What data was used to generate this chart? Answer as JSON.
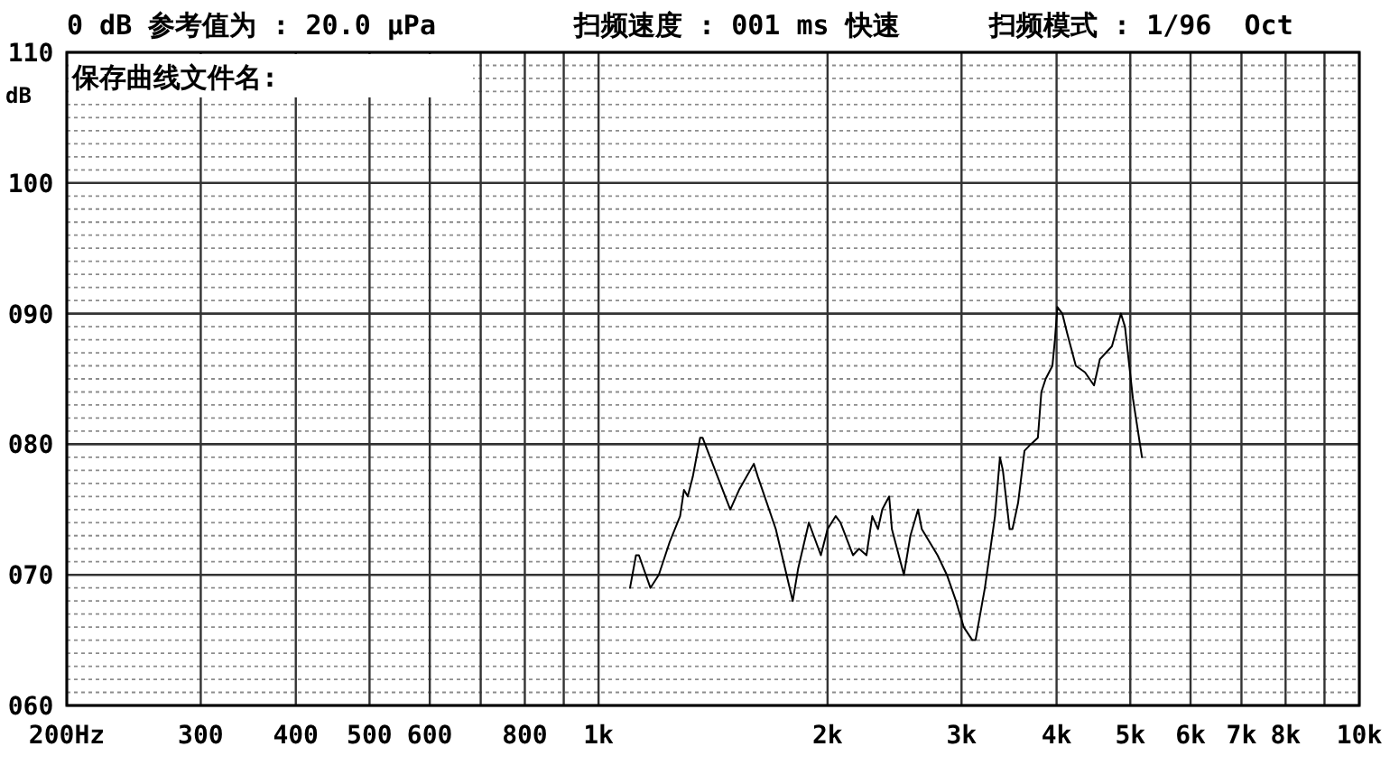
{
  "chart_data": {
    "type": "line",
    "title": "0 dB 参考值为 : 20.0 μPa",
    "annotations": [
      "扫频速度 : 001 ms 快速",
      "扫频模式 : 1/96  Oct",
      "保存曲线文件名:"
    ],
    "ylabel": "dB",
    "log": "x",
    "grid": true,
    "color": "#000000",
    "xlim": [
      200,
      10000
    ],
    "ylim": [
      60,
      110
    ],
    "xticks": [
      {
        "value": 200,
        "label": "200Hz"
      },
      300,
      400,
      500,
      600,
      {
        "value": 700,
        "label": null
      },
      800,
      {
        "value": 900,
        "label": null
      },
      {
        "value": 1000,
        "label": "1k"
      },
      {
        "value": 2000,
        "label": "2k"
      },
      {
        "value": 3000,
        "label": "3k"
      },
      {
        "value": 4000,
        "label": "4k"
      },
      {
        "value": 5000,
        "label": "5k"
      },
      {
        "value": 6000,
        "label": "6k"
      },
      {
        "value": 7000,
        "label": "7k"
      },
      {
        "value": 8000,
        "label": "8k"
      },
      {
        "value": 9000,
        "label": null
      },
      {
        "value": 10000,
        "label": "10k"
      }
    ],
    "yticks": [
      {
        "value": 60,
        "label": "060"
      },
      {
        "value": 61,
        "label": null
      },
      {
        "value": 62,
        "label": null
      },
      {
        "value": 63,
        "label": null
      },
      {
        "value": 64,
        "label": null
      },
      {
        "value": 65,
        "label": null
      },
      {
        "value": 66,
        "label": null
      },
      {
        "value": 67,
        "label": null
      },
      {
        "value": 68,
        "label": null
      },
      {
        "value": 69,
        "label": null
      },
      {
        "value": 70,
        "label": "070"
      },
      {
        "value": 71,
        "label": null
      },
      {
        "value": 72,
        "label": null
      },
      {
        "value": 73,
        "label": null
      },
      {
        "value": 74,
        "label": null
      },
      {
        "value": 75,
        "label": null
      },
      {
        "value": 76,
        "label": null
      },
      {
        "value": 77,
        "label": null
      },
      {
        "value": 78,
        "label": null
      },
      {
        "value": 79,
        "label": null
      },
      {
        "value": 80,
        "label": "080"
      },
      {
        "value": 81,
        "label": null
      },
      {
        "value": 82,
        "label": null
      },
      {
        "value": 83,
        "label": null
      },
      {
        "value": 84,
        "label": null
      },
      {
        "value": 85,
        "label": null
      },
      {
        "value": 86,
        "label": null
      },
      {
        "value": 87,
        "label": null
      },
      {
        "value": 88,
        "label": null
      },
      {
        "value": 89,
        "label": null
      },
      {
        "value": 90,
        "label": "090"
      },
      {
        "value": 91,
        "label": null
      },
      {
        "value": 92,
        "label": null
      },
      {
        "value": 93,
        "label": null
      },
      {
        "value": 94,
        "label": null
      },
      {
        "value": 95,
        "label": null
      },
      {
        "value": 96,
        "label": null
      },
      {
        "value": 97,
        "label": null
      },
      {
        "value": 98,
        "label": null
      },
      {
        "value": 99,
        "label": null
      },
      100,
      {
        "value": 101,
        "label": null
      },
      {
        "value": 102,
        "label": null
      },
      {
        "value": 103,
        "label": null
      },
      {
        "value": 104,
        "label": null
      },
      {
        "value": 105,
        "label": null
      },
      {
        "value": 106,
        "label": null
      },
      {
        "value": 107,
        "label": null
      },
      {
        "value": 108,
        "label": null
      },
      {
        "value": 109,
        "label": null
      },
      110
    ],
    "x": [
      1100,
      1120,
      1130,
      1170,
      1200,
      1240,
      1280,
      1295,
      1310,
      1330,
      1360,
      1370,
      1490,
      1530,
      1600,
      1620,
      1710,
      1800,
      1830,
      1890,
      1960,
      2000,
      2050,
      2080,
      2160,
      2200,
      2250,
      2290,
      2330,
      2360,
      2410,
      2430,
      2520,
      2570,
      2630,
      2660,
      2790,
      2870,
      2950,
      3020,
      3100,
      3130,
      3220,
      3320,
      3370,
      3400,
      3470,
      3500,
      3560,
      3630,
      3700,
      3780,
      3820,
      3870,
      3950,
      3980,
      4010,
      4070,
      4130,
      4240,
      4360,
      4480,
      4560,
      4730,
      4860,
      4920,
      5040,
      5180
    ],
    "values": [
      69,
      71.5,
      71.5,
      69,
      70,
      72.5,
      74.5,
      76.5,
      76,
      77.5,
      80.5,
      80.5,
      75,
      76.5,
      78.5,
      77.5,
      73.5,
      68,
      70.5,
      74,
      71.5,
      73.5,
      74.5,
      74,
      71.5,
      72,
      71.5,
      74.5,
      73.5,
      75,
      76,
      73.5,
      70,
      73,
      75,
      73.5,
      71.5,
      70,
      68,
      66,
      65,
      65,
      69,
      74.5,
      79,
      78,
      73.5,
      73.5,
      75.5,
      79.5,
      80,
      80.5,
      84,
      85,
      86,
      88,
      90.5,
      90,
      88.5,
      86,
      85.5,
      84.5,
      86.5,
      87.5,
      90,
      89,
      83.5,
      79
    ]
  }
}
